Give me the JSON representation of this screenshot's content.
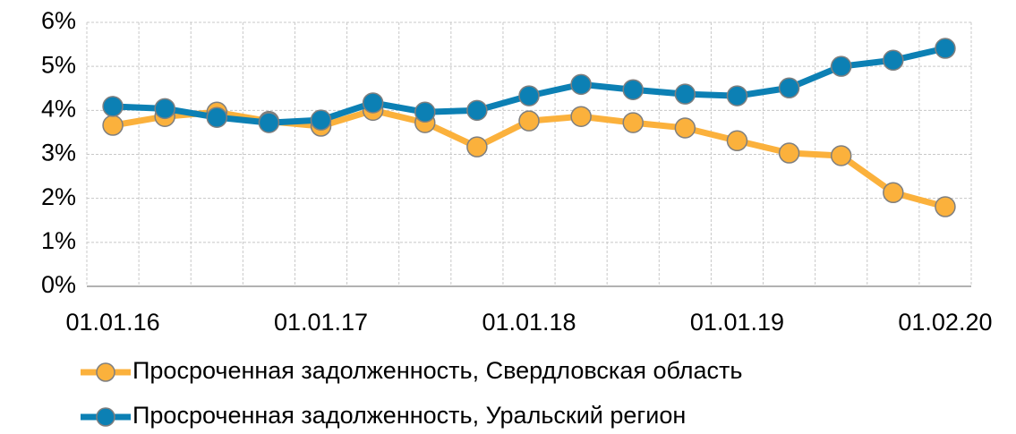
{
  "chart_data": {
    "type": "line",
    "categories": [
      "01.01.16",
      null,
      null,
      null,
      "01.01.17",
      null,
      null,
      null,
      "01.01.18",
      null,
      null,
      null,
      "01.01.19",
      null,
      null,
      null,
      "01.02.20"
    ],
    "series": [
      {
        "name": "Просроченная задолженность, Свердловская область",
        "color": "#fbb13c",
        "values": [
          3.66,
          3.86,
          3.96,
          3.75,
          3.64,
          4.0,
          3.72,
          3.17,
          3.76,
          3.86,
          3.72,
          3.6,
          3.31,
          3.03,
          2.97,
          2.13,
          1.81
        ]
      },
      {
        "name": "Просроченная задолженность, Уральский регион",
        "color": "#0c80b4",
        "values": [
          4.09,
          4.04,
          3.84,
          3.72,
          3.78,
          4.17,
          3.96,
          4.0,
          4.33,
          4.59,
          4.47,
          4.37,
          4.33,
          4.51,
          5.0,
          5.14,
          5.41
        ]
      }
    ],
    "ylim": [
      0,
      6
    ],
    "yticks": [
      {
        "value": 0,
        "label": "0%"
      },
      {
        "value": 1,
        "label": "1%"
      },
      {
        "value": 2,
        "label": "2%"
      },
      {
        "value": 3,
        "label": "3%"
      },
      {
        "value": 4,
        "label": "4%"
      },
      {
        "value": 5,
        "label": "5%"
      },
      {
        "value": 6,
        "label": "6%"
      }
    ],
    "grid": true,
    "legend": "bottom"
  }
}
